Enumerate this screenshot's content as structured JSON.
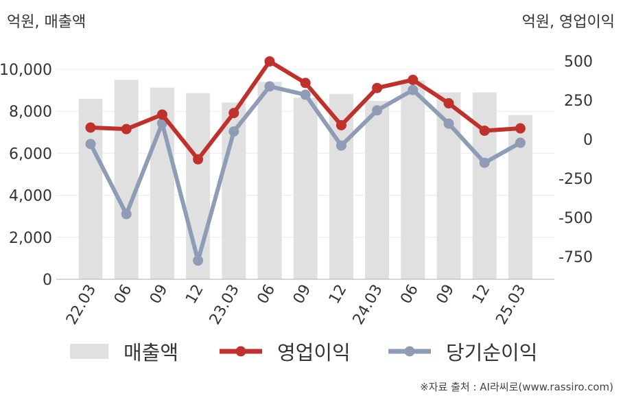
{
  "chart_data": {
    "type": "bar+line",
    "categories": [
      "22.03",
      "06",
      "09",
      "12",
      "23.03",
      "06",
      "09",
      "12",
      "24.03",
      "06",
      "09",
      "12",
      "25.03"
    ],
    "left_axis": {
      "title": "억원, 매출액",
      "range": [
        0,
        10000
      ],
      "ticks": [
        0,
        2000,
        4000,
        6000,
        8000,
        10000
      ],
      "tick_labels": [
        "0",
        "2,000",
        "4,000",
        "6,000",
        "8,000",
        "10,000"
      ]
    },
    "right_axis": {
      "title": "억원, 영업이익",
      "range": [
        -900,
        500
      ],
      "ticks": [
        500,
        250,
        0,
        -250,
        -500,
        -750
      ],
      "tick_labels": [
        "500",
        "250",
        "0",
        "-250",
        "-500",
        "-750"
      ]
    },
    "series": [
      {
        "name": "매출액",
        "type": "bar",
        "axis": "left",
        "color": "#e0e0e0",
        "values": [
          8600,
          9500,
          9130,
          8870,
          8420,
          9400,
          8650,
          8830,
          8500,
          9470,
          8900,
          8900,
          7820
        ]
      },
      {
        "name": "영업이익",
        "type": "line",
        "axis": "right",
        "color": "#c0312c",
        "values": [
          75,
          65,
          158,
          -128,
          168,
          498,
          360,
          90,
          328,
          380,
          230,
          55,
          70
        ]
      },
      {
        "name": "당기순이익",
        "type": "line",
        "axis": "right",
        "color": "#8e9cb5",
        "values": [
          -30,
          -478,
          103,
          -775,
          50,
          338,
          285,
          -40,
          185,
          315,
          100,
          -150,
          -22
        ]
      }
    ],
    "grid": true,
    "legend": "bottom"
  },
  "legend": [
    {
      "label": "매출액",
      "color": "#e0e0e0",
      "kind": "bar"
    },
    {
      "label": "영업이익",
      "color": "#c0312c",
      "kind": "line"
    },
    {
      "label": "당기순이익",
      "color": "#8e9cb5",
      "kind": "line"
    }
  ],
  "source_text": "※자료 출처 : AI라씨로(www.rassiro.com)"
}
